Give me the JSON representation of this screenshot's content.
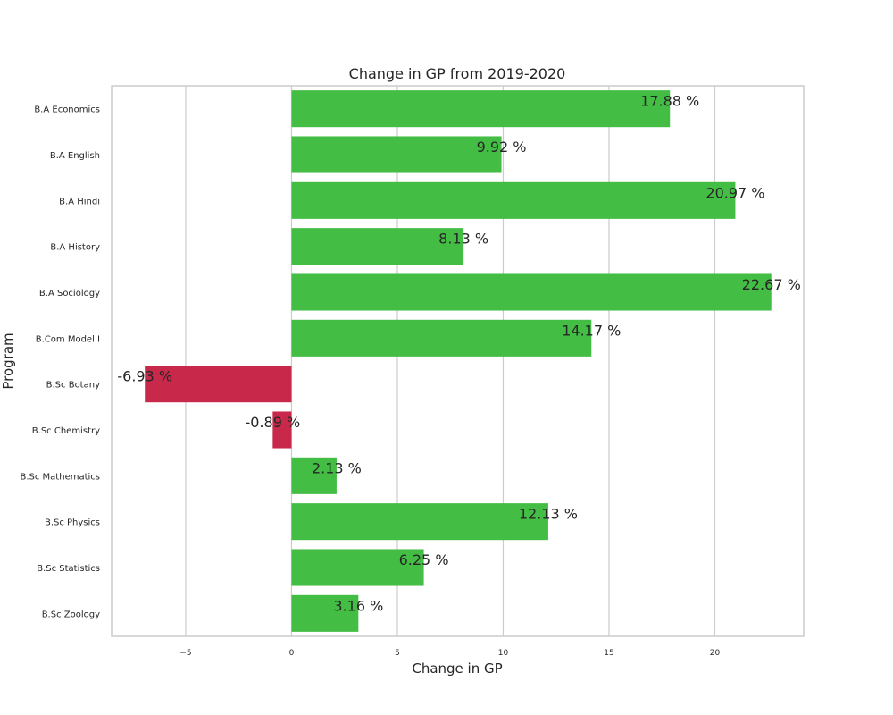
{
  "chart_data": {
    "type": "bar",
    "orientation": "horizontal",
    "title": "Change in GP from 2019-2020",
    "xlabel": "Change in GP",
    "ylabel": "Program",
    "categories": [
      "B.A Economics",
      "B.A English",
      "B.A Hindi",
      "B.A History",
      "B.A Sociology",
      "B.Com Model I",
      "B.Sc Botany",
      "B.Sc Chemistry",
      "B.Sc Mathematics",
      "B.Sc Physics",
      "B.Sc Statistics",
      "B.Sc Zoology"
    ],
    "values": [
      17.88,
      9.92,
      20.97,
      8.13,
      22.67,
      14.17,
      -6.93,
      -0.89,
      2.13,
      12.13,
      6.25,
      3.16
    ],
    "data_labels": [
      "17.88 %",
      "9.92 %",
      "20.97 %",
      "8.13 %",
      "22.67 %",
      "14.17 %",
      "-6.93 %",
      "-0.89 %",
      "2.13 %",
      "12.13 %",
      "6.25 %",
      "3.16 %"
    ],
    "xlim": [
      -8.5,
      24.2
    ],
    "xticks": [
      -5,
      0,
      5,
      10,
      15,
      20
    ],
    "xtick_labels": [
      "−5",
      "0",
      "5",
      "10",
      "15",
      "20"
    ],
    "grid": true,
    "colors": {
      "positive": "#44bd45",
      "negative": "#c8294b"
    }
  }
}
